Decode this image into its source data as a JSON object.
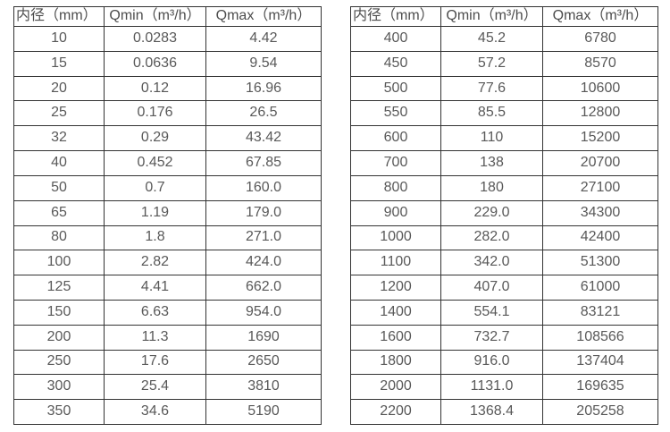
{
  "page": {
    "background": "#ffffff",
    "border_color": "#333333",
    "text_color": "#595959"
  },
  "tables": [
    {
      "name": "flow-rate-table-small-diameters",
      "headers": [
        "内径（mm）",
        "Qmin（m³/h）",
        "Qmax（m³/h）"
      ],
      "rows": [
        [
          "10",
          "0.0283",
          "4.42"
        ],
        [
          "15",
          "0.0636",
          "9.54"
        ],
        [
          "20",
          "0.12",
          "16.96"
        ],
        [
          "25",
          "0.176",
          "26.5"
        ],
        [
          "32",
          "0.29",
          "43.42"
        ],
        [
          "40",
          "0.452",
          "67.85"
        ],
        [
          "50",
          "0.7",
          "160.0"
        ],
        [
          "65",
          "1.19",
          "179.0"
        ],
        [
          "80",
          "1.8",
          "271.0"
        ],
        [
          "100",
          "2.82",
          "424.0"
        ],
        [
          "125",
          "4.41",
          "662.0"
        ],
        [
          "150",
          "6.63",
          "954.0"
        ],
        [
          "200",
          "11.3",
          "1690"
        ],
        [
          "250",
          "17.6",
          "2650"
        ],
        [
          "300",
          "25.4",
          "3810"
        ],
        [
          "350",
          "34.6",
          "5190"
        ]
      ]
    },
    {
      "name": "flow-rate-table-large-diameters",
      "headers": [
        "内径（mm）",
        "Qmin（m³/h）",
        "Qmax（m³/h）"
      ],
      "rows": [
        [
          "400",
          "45.2",
          "6780"
        ],
        [
          "450",
          "57.2",
          "8570"
        ],
        [
          "500",
          "77.6",
          "10600"
        ],
        [
          "550",
          "85.5",
          "12800"
        ],
        [
          "600",
          "110",
          "15200"
        ],
        [
          "700",
          "138",
          "20700"
        ],
        [
          "800",
          "180",
          "27100"
        ],
        [
          "900",
          "229.0",
          "34300"
        ],
        [
          "1000",
          "282.0",
          "42400"
        ],
        [
          "1100",
          "342.0",
          "51300"
        ],
        [
          "1200",
          "407.0",
          "61000"
        ],
        [
          "1400",
          "554.1",
          "83121"
        ],
        [
          "1600",
          "732.7",
          "108566"
        ],
        [
          "1800",
          "916.0",
          "137404"
        ],
        [
          "2000",
          "1131.0",
          "169635"
        ],
        [
          "2200",
          "1368.4",
          "205258"
        ]
      ]
    }
  ]
}
